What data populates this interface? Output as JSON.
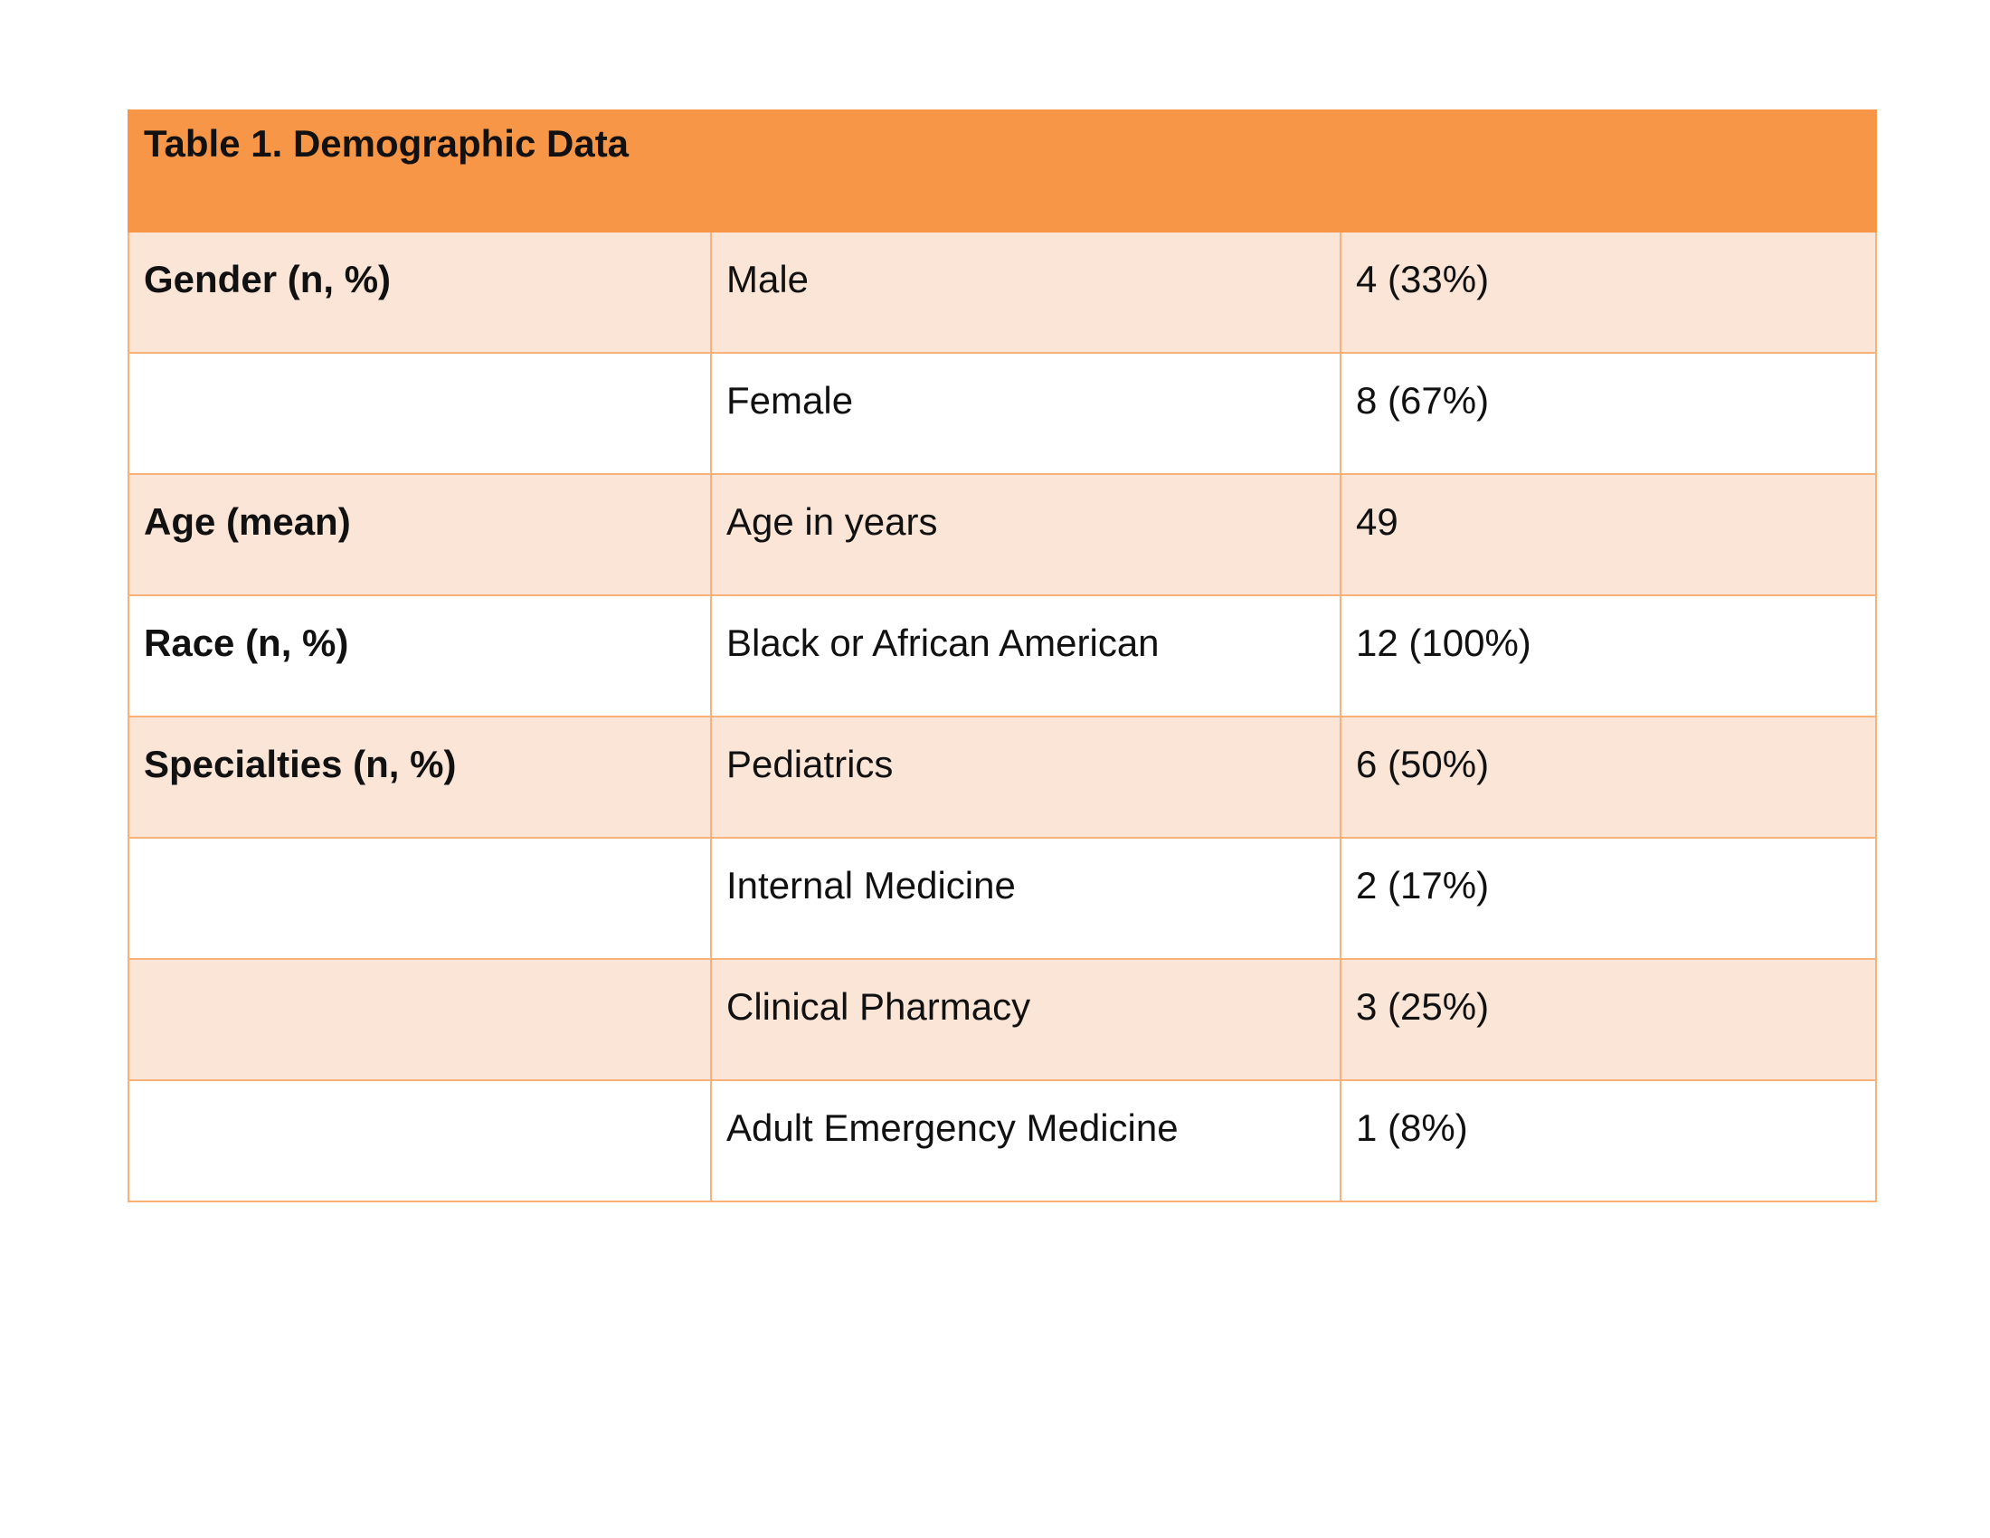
{
  "table": {
    "title": "Table 1. Demographic Data",
    "rows": [
      {
        "category": "Gender (n, %)",
        "item": "Male",
        "value": "4 (33%)"
      },
      {
        "category": "",
        "item": "Female",
        "value": "8 (67%)"
      },
      {
        "category": "Age (mean)",
        "item": "Age in years",
        "value": "49"
      },
      {
        "category": "Race (n, %)",
        "item": "Black or African American",
        "value": "12 (100%)"
      },
      {
        "category": "Specialties (n, %)",
        "item": "Pediatrics",
        "value": "6 (50%)"
      },
      {
        "category": "",
        "item": "Internal Medicine",
        "value": "2 (17%)"
      },
      {
        "category": "",
        "item": "Clinical Pharmacy",
        "value": "3 (25%)"
      },
      {
        "category": "",
        "item": "Adult Emergency Medicine",
        "value": "1 (8%)"
      }
    ]
  },
  "colors": {
    "header_fill": "#f79646",
    "shaded_row_fill": "#fbe5d6",
    "border": "#f6b27a"
  }
}
